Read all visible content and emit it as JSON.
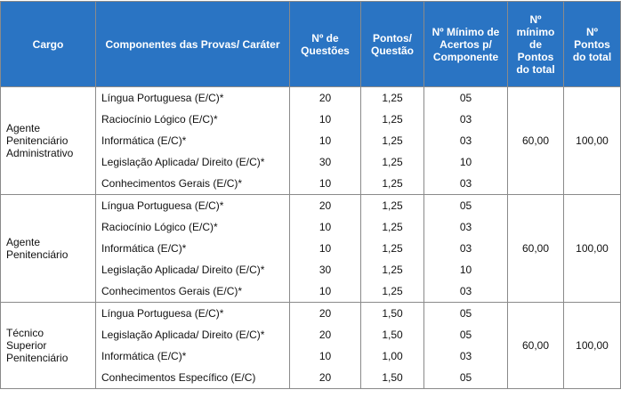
{
  "table": {
    "headers": [
      "Cargo",
      "Componentes das Provas/ Caráter",
      "Nº de Questões",
      "Pontos/ Questão",
      "Nº Mínimo de Acertos p/ Componente",
      "Nº mínimo de Pontos do total",
      "Nº Pontos do total"
    ],
    "groups": [
      {
        "cargo": "Agente Penitenciário Administrativo",
        "rows": [
          [
            "Língua Portuguesa (E/C)*",
            "20",
            "1,25",
            "05"
          ],
          [
            "Raciocínio Lógico (E/C)*",
            "10",
            "1,25",
            "03"
          ],
          [
            "Informática (E/C)*",
            "10",
            "1,25",
            "03"
          ],
          [
            "Legislação Aplicada/ Direito (E/C)*",
            "30",
            "1,25",
            "10"
          ],
          [
            "Conhecimentos Gerais (E/C)*",
            "10",
            "1,25",
            "03"
          ]
        ],
        "minimo": "60,00",
        "total": "100,00"
      },
      {
        "cargo": "Agente Penitenciário",
        "rows": [
          [
            "Língua Portuguesa (E/C)*",
            "20",
            "1,25",
            "05"
          ],
          [
            "Raciocínio Lógico (E/C)*",
            "10",
            "1,25",
            "03"
          ],
          [
            "Informática (E/C)*",
            "10",
            "1,25",
            "03"
          ],
          [
            "Legislação Aplicada/ Direito (E/C)*",
            "30",
            "1,25",
            "10"
          ],
          [
            "Conhecimentos Gerais (E/C)*",
            "10",
            "1,25",
            "03"
          ]
        ],
        "minimo": "60,00",
        "total": "100,00"
      },
      {
        "cargo": "Técnico Superior Penitenciário",
        "rows": [
          [
            "Língua Portuguesa (E/C)*",
            "20",
            "1,50",
            "05"
          ],
          [
            "Legislação Aplicada/ Direito (E/C)*",
            "20",
            "1,50",
            "05"
          ],
          [
            "Informática (E/C)*",
            "10",
            "1,00",
            "03"
          ],
          [
            "Conhecimentos Específico (E/C)",
            "20",
            "1,50",
            "05"
          ]
        ],
        "minimo": "60,00",
        "total": "100,00"
      }
    ]
  }
}
